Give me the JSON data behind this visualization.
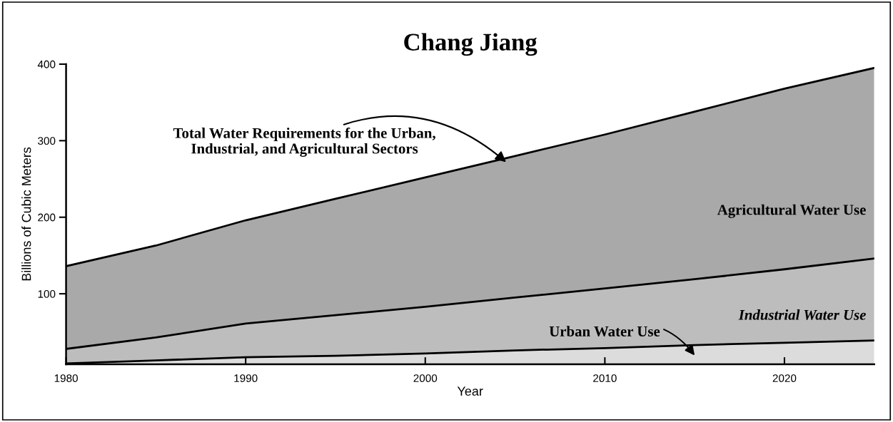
{
  "chart_data": {
    "type": "area",
    "stacked": true,
    "title": "Chang Jiang",
    "xlabel": "Year",
    "ylabel": "Billions of Cubic Meters",
    "x": [
      1980,
      1985,
      1990,
      1995,
      2000,
      2005,
      2010,
      2015,
      2020,
      2025
    ],
    "series": [
      {
        "name": "Urban Water Use",
        "color": "#dcdcdc",
        "values": [
          9,
          13,
          17,
          19,
          22,
          26,
          29,
          33,
          36,
          39
        ]
      },
      {
        "name": "Industrial Water Use",
        "color": "#bdbdbd",
        "values": [
          19,
          30,
          44,
          53,
          61,
          69,
          78,
          86,
          96,
          107
        ]
      },
      {
        "name": "Agricultural Water Use",
        "color": "#a9a9a9",
        "values": [
          108,
          120,
          135,
          152,
          169,
          185,
          201,
          219,
          236,
          249
        ]
      }
    ],
    "xlim": [
      1980,
      2025
    ],
    "xticks": [
      1980,
      1990,
      2000,
      2010,
      2020
    ],
    "ylim": [
      8,
      400
    ],
    "yticks": [
      100,
      200,
      300,
      400
    ],
    "annotations": [
      {
        "text": "Total Water Requirements for the Urban,\nIndustrial, and Agricultural Sectors",
        "x": 2004.5,
        "y": 272
      }
    ],
    "grid": false,
    "legend": false
  }
}
